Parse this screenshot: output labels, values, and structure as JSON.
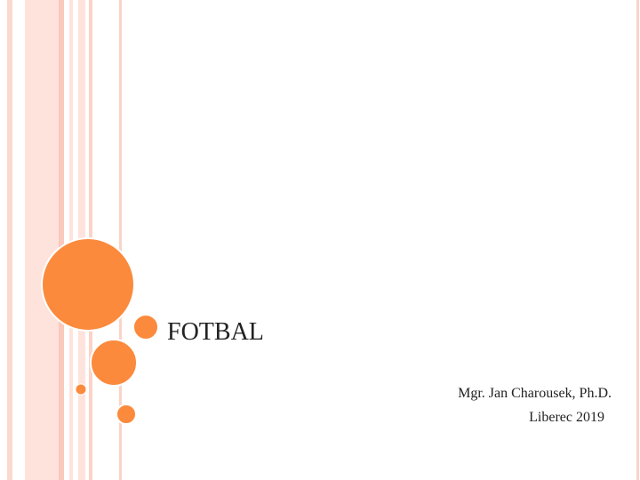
{
  "slide": {
    "title": "FOTBAL",
    "author": "Mgr. Jan Charousek, Ph.D.",
    "place_year": "Liberec 2019"
  }
}
